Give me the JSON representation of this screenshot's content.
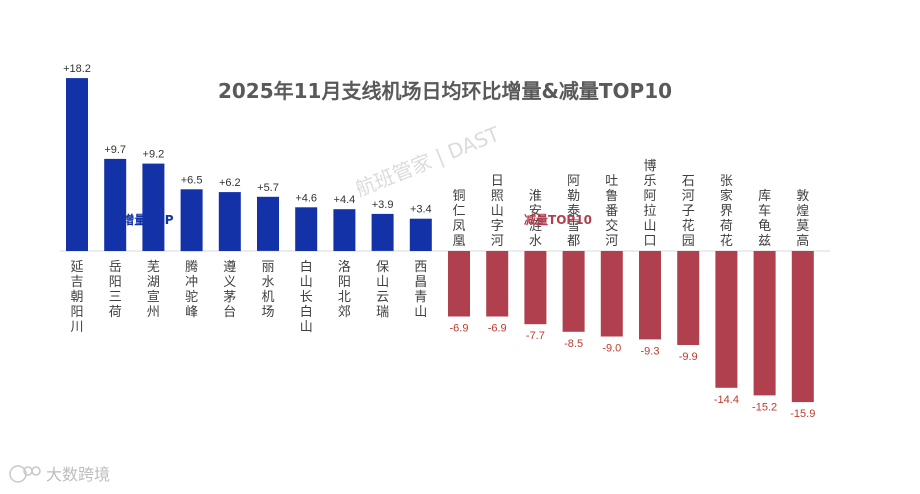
{
  "chart_data": {
    "type": "bar",
    "title": "2025年11月支线机场日均环比增量&减量TOP10",
    "series": [
      {
        "name": "增量TOP",
        "color": "#1332a8",
        "categories": [
          "延吉朝阳川",
          "岳阳三荷",
          "芜湖宣州",
          "腾冲驼峰",
          "遵义茅台",
          "丽水机场",
          "白山长白山",
          "洛阳北郊",
          "保山云瑞",
          "西昌青山"
        ],
        "values": [
          18.2,
          9.7,
          9.2,
          6.5,
          6.2,
          5.7,
          4.6,
          4.4,
          3.9,
          3.4
        ],
        "labels": [
          "+18.2",
          "+9.7",
          "+9.2",
          "+6.5",
          "+6.2",
          "+5.7",
          "+4.6",
          "+4.4",
          "+3.9",
          "+3.4"
        ]
      },
      {
        "name": "减量TOP10",
        "color": "#b0404e",
        "categories": [
          "铜仁凤凰",
          "日照山字河",
          "淮安涟水",
          "阿勒泰雪都",
          "吐鲁番交河",
          "博乐阿拉山口",
          "石河子花园",
          "张家界荷花",
          "库车龟兹",
          "敦煌莫高"
        ],
        "values": [
          -6.9,
          -6.9,
          -7.7,
          -8.5,
          -9.0,
          -9.3,
          -9.9,
          -14.4,
          -15.2,
          -15.9
        ],
        "labels": [
          "-6.9",
          "-6.9",
          "-7.7",
          "-8.5",
          "-9.0",
          "-9.3",
          "-9.9",
          "-14.4",
          "-15.2",
          "-15.9"
        ]
      }
    ],
    "ylim": [
      -15.9,
      18.2
    ],
    "grid": false,
    "legend": "none"
  },
  "watermark": "航班管家 | DAST",
  "logo": {
    "text": "大数跨境",
    "icon": "dsk-logo-icon"
  }
}
